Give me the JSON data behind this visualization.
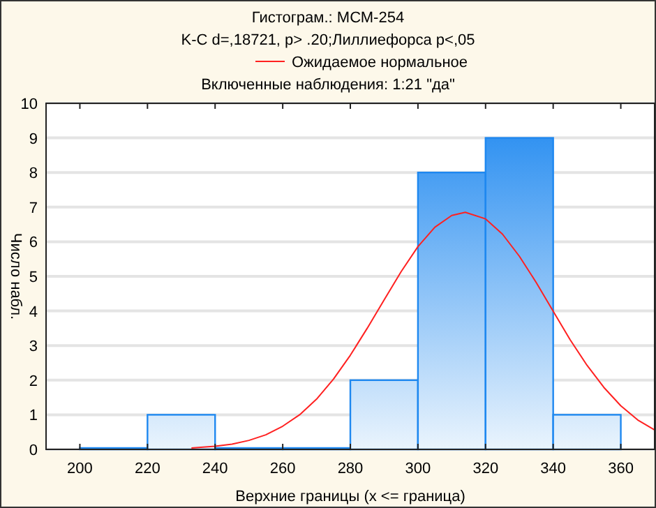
{
  "chart_data": {
    "type": "histogram",
    "title": "Гистограм.: МСМ-254",
    "subtitle": "K-C d=,18721, p> .20;Лиллиефорса p<,05",
    "annotations": [
      "Включенные наблюдения: 1:21 \"да\""
    ],
    "xlabel": "Верхние границы (x <= граница)",
    "ylabel": "Число набл.",
    "bins": [
      200,
      220,
      240,
      260,
      280,
      300,
      320,
      340,
      360
    ],
    "values": [
      0,
      1,
      0,
      0,
      2,
      8,
      9,
      1
    ],
    "color": "#1e88f0",
    "series": [
      {
        "type": "line",
        "name": "Ожидаемое нормальное",
        "color": "#ff2020",
        "x": [
          233,
          240,
          245,
          250,
          255,
          260,
          265,
          270,
          275,
          280,
          285,
          290,
          295,
          300,
          305,
          310,
          314,
          320,
          325,
          330,
          335,
          340,
          345,
          350,
          355,
          360,
          365,
          370
        ],
        "values": [
          0.04,
          0.09,
          0.15,
          0.26,
          0.42,
          0.67,
          1.0,
          1.45,
          2.03,
          2.72,
          3.5,
          4.32,
          5.13,
          5.86,
          6.42,
          6.76,
          6.85,
          6.66,
          6.22,
          5.58,
          4.82,
          3.99,
          3.17,
          2.43,
          1.79,
          1.26,
          0.85,
          0.56
        ]
      }
    ],
    "xlim": [
      190,
      370
    ],
    "xticks": [
      200,
      220,
      240,
      260,
      280,
      300,
      320,
      340,
      360
    ],
    "ylim": [
      0,
      10
    ],
    "yticks": [
      0,
      1,
      2,
      3,
      4,
      5,
      6,
      7,
      8,
      9,
      10
    ],
    "grid": "y",
    "legend": "top"
  }
}
